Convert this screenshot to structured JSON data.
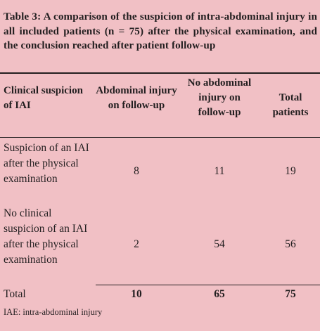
{
  "caption": "Table 3: A comparison of the suspicion of intra-abdominal injury in all included patients (n = 75) after the physical examination, and the conclusion reached after patient follow-up",
  "headers": {
    "clinical": "Clinical suspicion of IAI",
    "abdominal": "Abdominal injury on follow-up",
    "no_abdominal": "No abdominal injury on follow-up",
    "total": "Total patients"
  },
  "rows": [
    {
      "label": "Suspicion of an IAI after the physical examination",
      "abdominal": "8",
      "no_abdominal": "11",
      "total": "19"
    },
    {
      "label": "No clinical suspicion of an IAI after the physical examination",
      "abdominal": "2",
      "no_abdominal": "54",
      "total": "56"
    }
  ],
  "totals": {
    "label": "Total",
    "abdominal": "10",
    "no_abdominal": "65",
    "total": "75"
  },
  "footnote": "IAE: intra-abdominal injury"
}
